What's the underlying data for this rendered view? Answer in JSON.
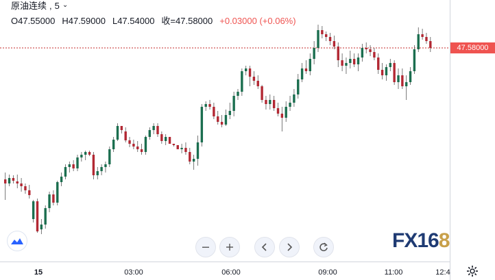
{
  "legend": {
    "symbol": "原油连续",
    "interval": "5",
    "open": "O47.55000",
    "high": "H47.59000",
    "low": "L47.54000",
    "close": "收=47.58000",
    "change": "+0.03000 (+0.06%)"
  },
  "price_badge": "47.58000",
  "time_axis": [
    "15",
    "03:00",
    "06:00",
    "09:00",
    "11:00",
    "12:4"
  ],
  "watermark": {
    "part1": "FX16",
    "part2": "8"
  },
  "toolbar": [
    "zoom-out",
    "zoom-in",
    "scroll-left",
    "scroll-right",
    "reset"
  ],
  "colors": {
    "up": "#26a69a",
    "down": "#ef5350",
    "body_down": "#b22833",
    "body_up": "#1b6e4f",
    "last_line": "#c62828"
  },
  "chart_data": {
    "type": "candlestick",
    "last_price": 47.58,
    "series": [
      [
        262,
        292,
        252,
        268
      ],
      [
        268,
        272,
        255,
        260
      ],
      [
        260,
        268,
        256,
        264
      ],
      [
        265,
        275,
        255,
        268
      ],
      [
        268,
        280,
        260,
        272
      ],
      [
        272,
        283,
        268,
        278
      ],
      [
        278,
        290,
        270,
        285
      ],
      [
        320,
        325,
        292,
        294
      ],
      [
        294,
        340,
        290,
        338
      ],
      [
        335,
        342,
        320,
        328
      ],
      [
        328,
        334,
        300,
        304
      ],
      [
        304,
        310,
        280,
        284
      ],
      [
        284,
        300,
        278,
        296
      ],
      [
        296,
        300,
        264,
        266
      ],
      [
        266,
        272,
        252,
        258
      ],
      [
        258,
        262,
        240,
        244
      ],
      [
        244,
        252,
        236,
        240
      ],
      [
        240,
        250,
        234,
        246
      ],
      [
        246,
        250,
        226,
        230
      ],
      [
        230,
        236,
        222,
        226
      ],
      [
        226,
        234,
        220,
        222
      ],
      [
        222,
        228,
        220,
        226
      ],
      [
        226,
        262,
        222,
        256
      ],
      [
        256,
        262,
        244,
        250
      ],
      [
        250,
        256,
        240,
        244
      ],
      [
        244,
        252,
        236,
        240
      ],
      [
        240,
        244,
        214,
        218
      ],
      [
        218,
        222,
        200,
        204
      ],
      [
        204,
        206,
        180,
        184
      ],
      [
        184,
        186,
        195,
        190
      ],
      [
        192,
        208,
        186,
        205
      ],
      [
        205,
        215,
        200,
        210
      ],
      [
        210,
        218,
        204,
        214
      ],
      [
        214,
        222,
        206,
        218
      ],
      [
        218,
        226,
        210,
        222
      ],
      [
        222,
        226,
        198,
        200
      ],
      [
        200,
        204,
        186,
        190
      ],
      [
        190,
        196,
        180,
        184
      ],
      [
        184,
        200,
        180,
        196
      ],
      [
        196,
        210,
        192,
        206
      ],
      [
        206,
        212,
        196,
        200
      ],
      [
        200,
        206,
        206,
        210
      ],
      [
        210,
        214,
        212,
        212
      ],
      [
        212,
        218,
        214,
        218
      ],
      [
        218,
        224,
        210,
        216
      ],
      [
        216,
        226,
        208,
        222
      ],
      [
        222,
        240,
        216,
        236
      ],
      [
        236,
        248,
        226,
        232
      ],
      [
        232,
        242,
        198,
        208
      ],
      [
        208,
        214,
        152,
        156
      ],
      [
        156,
        162,
        148,
        152
      ],
      [
        152,
        160,
        146,
        156
      ],
      [
        156,
        174,
        150,
        170
      ],
      [
        170,
        182,
        162,
        178
      ],
      [
        178,
        186,
        168,
        182
      ],
      [
        182,
        184,
        160,
        168
      ],
      [
        168,
        174,
        150,
        162
      ],
      [
        162,
        170,
        134,
        140
      ],
      [
        140,
        146,
        130,
        134
      ],
      [
        134,
        140,
        100,
        104
      ],
      [
        104,
        110,
        96,
        100
      ],
      [
        100,
        126,
        96,
        112
      ],
      [
        112,
        124,
        104,
        118
      ],
      [
        118,
        130,
        110,
        126
      ],
      [
        126,
        150,
        124,
        146
      ],
      [
        146,
        160,
        140,
        152
      ],
      [
        152,
        160,
        138,
        146
      ],
      [
        146,
        162,
        140,
        158
      ],
      [
        158,
        170,
        150,
        166
      ],
      [
        166,
        192,
        156,
        172
      ],
      [
        172,
        178,
        148,
        156
      ],
      [
        156,
        162,
        140,
        150
      ],
      [
        150,
        156,
        130,
        138
      ],
      [
        138,
        144,
        108,
        116
      ],
      [
        116,
        120,
        92,
        100
      ],
      [
        100,
        108,
        88,
        104
      ],
      [
        104,
        110,
        78,
        86
      ],
      [
        86,
        94,
        60,
        70
      ],
      [
        70,
        76,
        36,
        44
      ],
      [
        44,
        56,
        38,
        50
      ],
      [
        50,
        60,
        46,
        54
      ],
      [
        54,
        66,
        48,
        60
      ],
      [
        60,
        72,
        52,
        68
      ],
      [
        68,
        98,
        62,
        88
      ],
      [
        88,
        104,
        78,
        96
      ],
      [
        96,
        108,
        84,
        92
      ],
      [
        92,
        100,
        74,
        86
      ],
      [
        86,
        98,
        78,
        94
      ],
      [
        94,
        104,
        78,
        84
      ],
      [
        84,
        90,
        64,
        70
      ],
      [
        70,
        78,
        62,
        72
      ],
      [
        72,
        82,
        66,
        76
      ],
      [
        76,
        88,
        70,
        84
      ],
      [
        84,
        108,
        78,
        102
      ],
      [
        102,
        116,
        92,
        110
      ],
      [
        110,
        118,
        94,
        98
      ],
      [
        98,
        104,
        86,
        92
      ],
      [
        92,
        124,
        88,
        120
      ],
      [
        120,
        130,
        100,
        110
      ],
      [
        110,
        130,
        100,
        126
      ],
      [
        126,
        146,
        110,
        120
      ],
      [
        120,
        124,
        98,
        104
      ],
      [
        104,
        108,
        66,
        72
      ],
      [
        72,
        76,
        40,
        50
      ],
      [
        50,
        58,
        42,
        54
      ],
      [
        54,
        64,
        48,
        60
      ],
      [
        60,
        76,
        54,
        70
      ]
    ]
  }
}
